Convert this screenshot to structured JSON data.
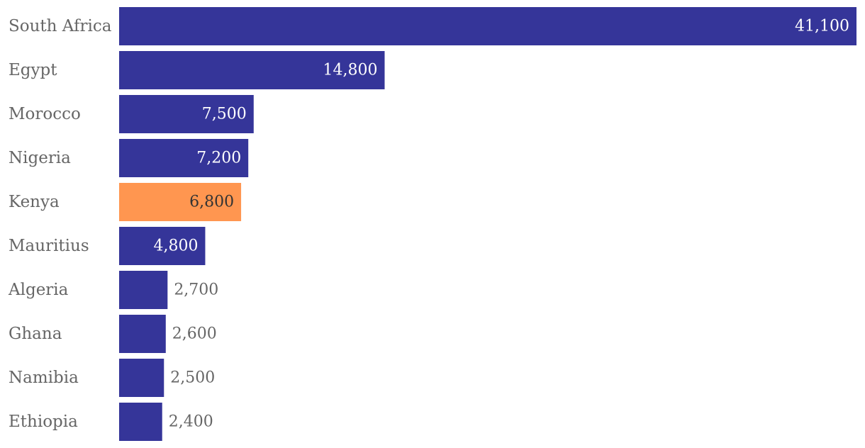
{
  "chart_data": {
    "type": "bar",
    "orientation": "horizontal",
    "title": "",
    "xlabel": "",
    "ylabel": "",
    "categories": [
      "South Africa",
      "Egypt",
      "Morocco",
      "Nigeria",
      "Kenya",
      "Mauritius",
      "Algeria",
      "Ghana",
      "Namibia",
      "Ethiopia"
    ],
    "values": [
      41100,
      14800,
      7500,
      7200,
      6800,
      4800,
      2700,
      2600,
      2500,
      2400
    ],
    "value_labels": [
      "41,100",
      "14,800",
      "7,500",
      "7,200",
      "6,800",
      "4,800",
      "2,700",
      "2,600",
      "2,500",
      "2,400"
    ],
    "highlight": "Kenya",
    "xlim": [
      0,
      41100
    ],
    "grid": false,
    "legend": "none"
  },
  "colors": {
    "bar": "#353599",
    "highlight": "#ff9650",
    "label_inside": "#ffffff",
    "label_inside_highlight": "#333333",
    "label_outside": "#666666",
    "category_text": "#666666"
  }
}
